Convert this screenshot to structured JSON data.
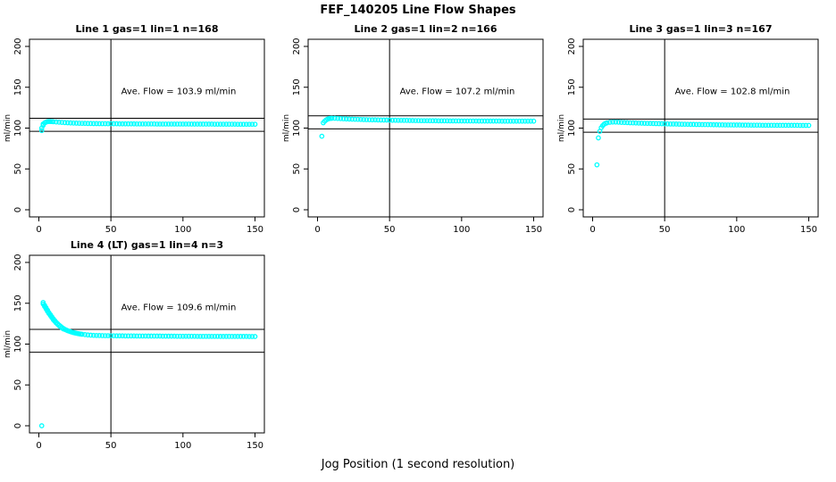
{
  "page": {
    "title": "FEF_140205  Line Flow Shapes",
    "xlabel": "Jog Position (1 second resolution)"
  },
  "chart_data": [
    {
      "type": "scatter",
      "title": "Line 1 gas=1 lin=1 n=168",
      "annotation": "Ave. Flow =  103.9  ml/min",
      "ave_flow": 103.9,
      "ylabel": "ml/min",
      "xlim": [
        0,
        150
      ],
      "ylim": [
        0,
        200
      ],
      "xticks": [
        0,
        50,
        100,
        150
      ],
      "yticks": [
        0,
        50,
        100,
        150,
        200
      ],
      "vline_x": 50,
      "hlines": [
        112,
        96
      ],
      "marker_color": "#00FFFF",
      "points": [
        [
          2,
          97
        ],
        [
          2,
          100
        ],
        [
          3,
          103.5
        ],
        [
          3,
          105
        ],
        [
          4,
          106.3
        ],
        [
          5,
          107.3
        ],
        [
          6,
          107.9
        ],
        [
          7,
          108.1
        ],
        [
          8,
          108.1
        ],
        [
          9,
          108
        ],
        [
          10,
          107.8
        ],
        [
          12,
          107.5
        ],
        [
          14,
          107.2
        ],
        [
          16,
          107
        ],
        [
          18,
          106.7
        ],
        [
          20,
          106.5
        ],
        [
          22,
          106.3
        ],
        [
          24,
          106.1
        ],
        [
          26,
          106
        ],
        [
          28,
          105.9
        ],
        [
          30,
          105.8
        ],
        [
          32,
          105.7
        ],
        [
          34,
          105.6
        ],
        [
          36,
          105.6
        ],
        [
          38,
          105.5
        ],
        [
          40,
          105.5
        ],
        [
          42,
          105.4
        ],
        [
          44,
          105.4
        ],
        [
          46,
          105.4
        ],
        [
          48,
          105.3
        ],
        [
          50,
          105.3
        ],
        [
          52,
          105.3
        ],
        [
          54,
          105.3
        ],
        [
          56,
          105.2
        ],
        [
          58,
          105.2
        ],
        [
          60,
          105.2
        ],
        [
          62,
          105.2
        ],
        [
          64,
          105.2
        ],
        [
          66,
          105.2
        ],
        [
          68,
          105.1
        ],
        [
          70,
          105.1
        ],
        [
          72,
          105.1
        ],
        [
          74,
          105.1
        ],
        [
          76,
          105.1
        ],
        [
          78,
          105.1
        ],
        [
          80,
          105.1
        ],
        [
          82,
          105
        ],
        [
          84,
          105
        ],
        [
          86,
          105
        ],
        [
          88,
          105
        ],
        [
          90,
          105
        ],
        [
          92,
          105
        ],
        [
          94,
          105
        ],
        [
          96,
          105
        ],
        [
          98,
          105
        ],
        [
          100,
          105
        ],
        [
          102,
          105
        ],
        [
          104,
          105
        ],
        [
          106,
          104.9
        ],
        [
          108,
          104.9
        ],
        [
          110,
          104.9
        ],
        [
          112,
          104.9
        ],
        [
          114,
          104.9
        ],
        [
          116,
          104.9
        ],
        [
          118,
          104.9
        ],
        [
          120,
          104.9
        ],
        [
          122,
          104.8
        ],
        [
          124,
          104.8
        ],
        [
          126,
          104.8
        ],
        [
          128,
          104.8
        ],
        [
          130,
          104.8
        ],
        [
          132,
          104.8
        ],
        [
          134,
          104.8
        ],
        [
          136,
          104.8
        ],
        [
          138,
          104.7
        ],
        [
          140,
          104.7
        ],
        [
          142,
          104.7
        ],
        [
          144,
          104.7
        ],
        [
          146,
          104.7
        ],
        [
          148,
          104.7
        ],
        [
          150,
          104.7
        ]
      ]
    },
    {
      "type": "scatter",
      "title": "Line 2 gas=1 lin=2 n=166",
      "annotation": "Ave. Flow =  107.2  ml/min",
      "ave_flow": 107.2,
      "ylabel": "ml/min",
      "xlim": [
        0,
        150
      ],
      "ylim": [
        0,
        200
      ],
      "xticks": [
        0,
        50,
        100,
        150
      ],
      "yticks": [
        0,
        50,
        100,
        150,
        200
      ],
      "vline_x": 50,
      "hlines": [
        115,
        99
      ],
      "marker_color": "#00FFFF",
      "points": [
        [
          3,
          90
        ],
        [
          4,
          106.5
        ],
        [
          5,
          108.5
        ],
        [
          6,
          110
        ],
        [
          7,
          111
        ],
        [
          8,
          111.6
        ],
        [
          9,
          111.9
        ],
        [
          10,
          112
        ],
        [
          12,
          112
        ],
        [
          14,
          111.8
        ],
        [
          16,
          111.6
        ],
        [
          18,
          111.4
        ],
        [
          20,
          111.2
        ],
        [
          22,
          111.1
        ],
        [
          24,
          110.9
        ],
        [
          26,
          110.8
        ],
        [
          28,
          110.7
        ],
        [
          30,
          110.6
        ],
        [
          32,
          110.4
        ],
        [
          34,
          110.3
        ],
        [
          36,
          110.2
        ],
        [
          38,
          110.1
        ],
        [
          40,
          110.1
        ],
        [
          42,
          110
        ],
        [
          44,
          109.9
        ],
        [
          46,
          109.8
        ],
        [
          48,
          109.8
        ],
        [
          50,
          109.7
        ],
        [
          52,
          109.6
        ],
        [
          54,
          109.6
        ],
        [
          56,
          109.5
        ],
        [
          58,
          109.5
        ],
        [
          60,
          109.4
        ],
        [
          62,
          109.4
        ],
        [
          64,
          109.3
        ],
        [
          66,
          109.3
        ],
        [
          68,
          109.2
        ],
        [
          70,
          109.2
        ],
        [
          72,
          109.1
        ],
        [
          74,
          109.1
        ],
        [
          76,
          109.1
        ],
        [
          78,
          109
        ],
        [
          80,
          109
        ],
        [
          82,
          109
        ],
        [
          84,
          108.9
        ],
        [
          86,
          108.9
        ],
        [
          88,
          108.9
        ],
        [
          90,
          108.9
        ],
        [
          92,
          108.8
        ],
        [
          94,
          108.8
        ],
        [
          96,
          108.8
        ],
        [
          98,
          108.8
        ],
        [
          100,
          108.7
        ],
        [
          102,
          108.7
        ],
        [
          104,
          108.7
        ],
        [
          106,
          108.7
        ],
        [
          108,
          108.7
        ],
        [
          110,
          108.7
        ],
        [
          112,
          108.6
        ],
        [
          114,
          108.6
        ],
        [
          116,
          108.6
        ],
        [
          118,
          108.6
        ],
        [
          120,
          108.6
        ],
        [
          122,
          108.6
        ],
        [
          124,
          108.6
        ],
        [
          126,
          108.6
        ],
        [
          128,
          108.5
        ],
        [
          130,
          108.5
        ],
        [
          132,
          108.5
        ],
        [
          134,
          108.5
        ],
        [
          136,
          108.5
        ],
        [
          138,
          108.5
        ],
        [
          140,
          108.5
        ],
        [
          142,
          108.5
        ],
        [
          144,
          108.5
        ],
        [
          146,
          108.5
        ],
        [
          148,
          108.5
        ],
        [
          150,
          108.5
        ]
      ]
    },
    {
      "type": "scatter",
      "title": "Line 3 gas=1 lin=3 n=167",
      "annotation": "Ave. Flow =  102.8  ml/min",
      "ave_flow": 102.8,
      "ylabel": "ml/min",
      "xlim": [
        0,
        150
      ],
      "ylim": [
        0,
        200
      ],
      "xticks": [
        0,
        50,
        100,
        150
      ],
      "yticks": [
        0,
        50,
        100,
        150,
        200
      ],
      "vline_x": 50,
      "hlines": [
        111,
        95
      ],
      "marker_color": "#00FFFF",
      "points": [
        [
          3,
          55
        ],
        [
          4,
          88
        ],
        [
          5,
          96
        ],
        [
          6,
          100.5
        ],
        [
          7,
          103
        ],
        [
          8,
          104.8
        ],
        [
          9,
          105.8
        ],
        [
          10,
          106.5
        ],
        [
          12,
          107.1
        ],
        [
          14,
          107.4
        ],
        [
          16,
          107.4
        ],
        [
          18,
          107.2
        ],
        [
          20,
          107
        ],
        [
          22,
          106.8
        ],
        [
          24,
          106.7
        ],
        [
          26,
          106.5
        ],
        [
          28,
          106.4
        ],
        [
          30,
          106.3
        ],
        [
          32,
          106.1
        ],
        [
          34,
          106
        ],
        [
          36,
          105.9
        ],
        [
          38,
          105.8
        ],
        [
          40,
          105.7
        ],
        [
          42,
          105.6
        ],
        [
          44,
          105.5
        ],
        [
          46,
          105.4
        ],
        [
          48,
          105.3
        ],
        [
          50,
          105.2
        ],
        [
          52,
          105.1
        ],
        [
          54,
          105
        ],
        [
          56,
          105
        ],
        [
          58,
          104.9
        ],
        [
          60,
          104.8
        ],
        [
          62,
          104.7
        ],
        [
          64,
          104.7
        ],
        [
          66,
          104.6
        ],
        [
          68,
          104.5
        ],
        [
          70,
          104.5
        ],
        [
          72,
          104.4
        ],
        [
          74,
          104.4
        ],
        [
          76,
          104.3
        ],
        [
          78,
          104.3
        ],
        [
          80,
          104.2
        ],
        [
          82,
          104.2
        ],
        [
          84,
          104.1
        ],
        [
          86,
          104.1
        ],
        [
          88,
          104
        ],
        [
          90,
          104
        ],
        [
          92,
          103.9
        ],
        [
          94,
          103.9
        ],
        [
          96,
          103.9
        ],
        [
          98,
          103.8
        ],
        [
          100,
          103.8
        ],
        [
          102,
          103.8
        ],
        [
          104,
          103.7
        ],
        [
          106,
          103.7
        ],
        [
          108,
          103.7
        ],
        [
          110,
          103.6
        ],
        [
          112,
          103.6
        ],
        [
          114,
          103.6
        ],
        [
          116,
          103.6
        ],
        [
          118,
          103.5
        ],
        [
          120,
          103.5
        ],
        [
          122,
          103.5
        ],
        [
          124,
          103.5
        ],
        [
          126,
          103.5
        ],
        [
          128,
          103.4
        ],
        [
          130,
          103.4
        ],
        [
          132,
          103.4
        ],
        [
          134,
          103.4
        ],
        [
          136,
          103.4
        ],
        [
          138,
          103.4
        ],
        [
          140,
          103.4
        ],
        [
          142,
          103.4
        ],
        [
          144,
          103.3
        ],
        [
          146,
          103.3
        ],
        [
          148,
          103.3
        ],
        [
          150,
          103.3
        ]
      ]
    },
    {
      "type": "scatter",
      "title": "Line 4 (LT) gas=1 lin=4 n=3",
      "annotation": "Ave. Flow =  109.6  ml/min",
      "ave_flow": 109.6,
      "ylabel": "ml/min",
      "xlim": [
        0,
        150
      ],
      "ylim": [
        0,
        200
      ],
      "xticks": [
        0,
        50,
        100,
        150
      ],
      "yticks": [
        0,
        50,
        100,
        150,
        200
      ],
      "vline_x": 50,
      "hlines": [
        118,
        90
      ],
      "marker_color": "#00FFFF",
      "points": [
        [
          2,
          0
        ],
        [
          3,
          151
        ],
        [
          3,
          149
        ],
        [
          4,
          147.5
        ],
        [
          4,
          146
        ],
        [
          5,
          144.5
        ],
        [
          5,
          143
        ],
        [
          6,
          141.5
        ],
        [
          6,
          140
        ],
        [
          7,
          138.5
        ],
        [
          7,
          137.5
        ],
        [
          8,
          136
        ],
        [
          8,
          135
        ],
        [
          9,
          133.5
        ],
        [
          9,
          132.5
        ],
        [
          10,
          131
        ],
        [
          10,
          130
        ],
        [
          11,
          128.8
        ],
        [
          11,
          128
        ],
        [
          12,
          126.8
        ],
        [
          12,
          126
        ],
        [
          13,
          125
        ],
        [
          13,
          124.3
        ],
        [
          14,
          123.3
        ],
        [
          14,
          122.7
        ],
        [
          15,
          121.8
        ],
        [
          15,
          121.2
        ],
        [
          16,
          120.4
        ],
        [
          16,
          119.8
        ],
        [
          17,
          119.1
        ],
        [
          17,
          118.6
        ],
        [
          18,
          118
        ],
        [
          19,
          117.2
        ],
        [
          20,
          116.4
        ],
        [
          21,
          115.8
        ],
        [
          22,
          115.2
        ],
        [
          23,
          114.6
        ],
        [
          24,
          114.1
        ],
        [
          25,
          113.7
        ],
        [
          26,
          113.3
        ],
        [
          27,
          112.9
        ],
        [
          28,
          112.6
        ],
        [
          29,
          112.3
        ],
        [
          30,
          112
        ],
        [
          32,
          111.6
        ],
        [
          34,
          111.2
        ],
        [
          36,
          110.9
        ],
        [
          38,
          110.7
        ],
        [
          40,
          110.6
        ],
        [
          42,
          110.5
        ],
        [
          44,
          110.4
        ],
        [
          46,
          110.3
        ],
        [
          48,
          110.3
        ],
        [
          50,
          110.2
        ],
        [
          52,
          110.2
        ],
        [
          54,
          110.1
        ],
        [
          56,
          110.1
        ],
        [
          58,
          110.1
        ],
        [
          60,
          110
        ],
        [
          62,
          110
        ],
        [
          64,
          110
        ],
        [
          66,
          110
        ],
        [
          68,
          109.9
        ],
        [
          70,
          109.9
        ],
        [
          72,
          109.9
        ],
        [
          74,
          109.9
        ],
        [
          76,
          109.8
        ],
        [
          78,
          109.8
        ],
        [
          80,
          109.8
        ],
        [
          82,
          109.8
        ],
        [
          84,
          109.8
        ],
        [
          86,
          109.7
        ],
        [
          88,
          109.7
        ],
        [
          90,
          109.7
        ],
        [
          92,
          109.7
        ],
        [
          94,
          109.7
        ],
        [
          96,
          109.6
        ],
        [
          98,
          109.6
        ],
        [
          100,
          109.6
        ],
        [
          102,
          109.6
        ],
        [
          104,
          109.6
        ],
        [
          106,
          109.6
        ],
        [
          108,
          109.6
        ],
        [
          110,
          109.5
        ],
        [
          112,
          109.5
        ],
        [
          114,
          109.5
        ],
        [
          116,
          109.5
        ],
        [
          118,
          109.5
        ],
        [
          120,
          109.5
        ],
        [
          122,
          109.5
        ],
        [
          124,
          109.5
        ],
        [
          126,
          109.4
        ],
        [
          128,
          109.4
        ],
        [
          130,
          109.4
        ],
        [
          132,
          109.4
        ],
        [
          134,
          109.4
        ],
        [
          136,
          109.4
        ],
        [
          138,
          109.4
        ],
        [
          140,
          109.4
        ],
        [
          142,
          109.4
        ],
        [
          144,
          109.4
        ],
        [
          146,
          109.3
        ],
        [
          148,
          109.3
        ],
        [
          150,
          109.3
        ]
      ]
    }
  ]
}
